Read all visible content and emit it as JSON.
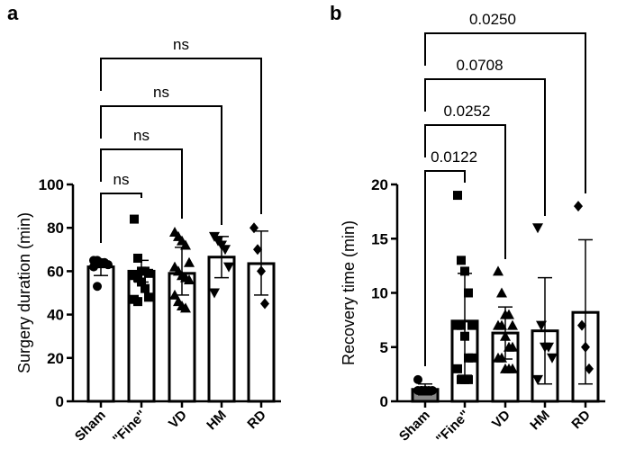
{
  "chart_data": [
    {
      "type": "bar",
      "panel_label": "a",
      "ylabel": "Surgery duration (min)",
      "ylim": [
        0,
        100
      ],
      "yticks": [
        "0",
        "20",
        "40",
        "60",
        "80",
        "100"
      ],
      "yticks_values": [
        0,
        20,
        40,
        60,
        80,
        100
      ],
      "categories": [
        "Sham",
        "\"Fine\"",
        "VD",
        "HM",
        "RD"
      ],
      "means": [
        62,
        60,
        59,
        66.5,
        63.5
      ],
      "sd_low": [
        58,
        55,
        49,
        57,
        49
      ],
      "sd_high": [
        65,
        65,
        71,
        76,
        78.5
      ],
      "markers": [
        "circle",
        "square",
        "triangle-up",
        "triangle-down",
        "diamond"
      ],
      "points": [
        [
          65,
          65,
          64,
          64,
          63,
          62,
          53
        ],
        [
          84,
          66,
          60,
          60,
          59,
          58,
          57,
          55,
          52,
          48,
          47,
          46
        ],
        [
          78,
          76,
          74,
          72,
          64,
          62,
          60,
          58,
          57,
          56,
          49,
          46,
          44,
          43
        ],
        [
          76,
          74,
          72,
          70,
          62,
          50
        ],
        [
          80,
          70,
          60,
          45
        ]
      ],
      "comparisons": [
        {
          "from": 0,
          "to": 4,
          "label": "ns"
        },
        {
          "from": 0,
          "to": 3,
          "label": "ns"
        },
        {
          "from": 0,
          "to": 2,
          "label": "ns"
        },
        {
          "from": 0,
          "to": 1,
          "label": "ns"
        }
      ]
    },
    {
      "type": "bar",
      "panel_label": "b",
      "ylabel": "Recovery time (min)",
      "ylim": [
        0,
        20
      ],
      "yticks": [
        "0",
        "5",
        "10",
        "15",
        "20"
      ],
      "yticks_values": [
        0,
        5,
        10,
        15,
        20
      ],
      "categories": [
        "Sham",
        "\"Fine\"",
        "VD",
        "HM",
        "RD"
      ],
      "means": [
        1.1,
        7.4,
        6.3,
        6.5,
        8.2
      ],
      "sd_low": [
        0.6,
        2.4,
        3.9,
        1.6,
        1.6
      ],
      "sd_high": [
        1.6,
        11.8,
        8.7,
        11.4,
        14.9
      ],
      "markers": [
        "circle",
        "square",
        "triangle-up",
        "triangle-down",
        "diamond"
      ],
      "points": [
        [
          2,
          1,
          1,
          1,
          1,
          1,
          1,
          1
        ],
        [
          19,
          13,
          12,
          10,
          7,
          7,
          7,
          6,
          4,
          4,
          3,
          2,
          2,
          2
        ],
        [
          12,
          10,
          8,
          8,
          7,
          7,
          7,
          6,
          5,
          5,
          4,
          4,
          3,
          3,
          3
        ],
        [
          16,
          7,
          5,
          5,
          4,
          2
        ],
        [
          18,
          7,
          5,
          3
        ]
      ],
      "comparisons": [
        {
          "from": 0,
          "to": 4,
          "label": "0.0250"
        },
        {
          "from": 0,
          "to": 3,
          "label": "0.0708"
        },
        {
          "from": 0,
          "to": 2,
          "label": "0.0252"
        },
        {
          "from": 0,
          "to": 1,
          "label": "0.0122"
        }
      ]
    }
  ]
}
